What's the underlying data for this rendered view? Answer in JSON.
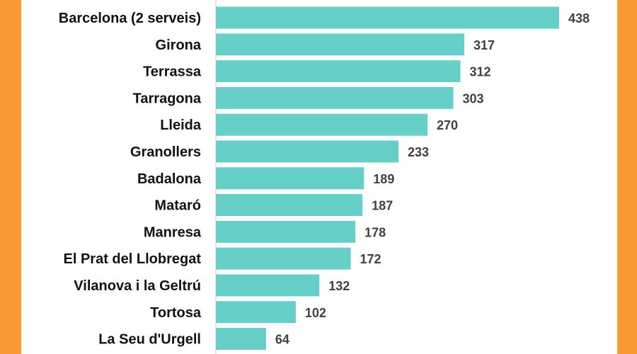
{
  "chart_data": {
    "type": "bar",
    "orientation": "horizontal",
    "title": "",
    "xlabel": "",
    "ylabel": "",
    "categories": [
      "Barcelona (2 serveis)",
      "Girona",
      "Terrassa",
      "Tarragona",
      "Lleida",
      "Granollers",
      "Badalona",
      "Mataró",
      "Manresa",
      "El Prat del Llobregat",
      "Vilanova i la Geltrú",
      "Tortosa",
      "La Seu d'Urgell"
    ],
    "values": [
      438,
      317,
      312,
      303,
      270,
      233,
      189,
      187,
      178,
      172,
      132,
      102,
      64
    ],
    "xlim": [
      0,
      438
    ],
    "grid": false,
    "legend": "none",
    "colors": {
      "bar": "#66cfc7",
      "background": "#ffffff",
      "frame": "#f99a35"
    }
  }
}
